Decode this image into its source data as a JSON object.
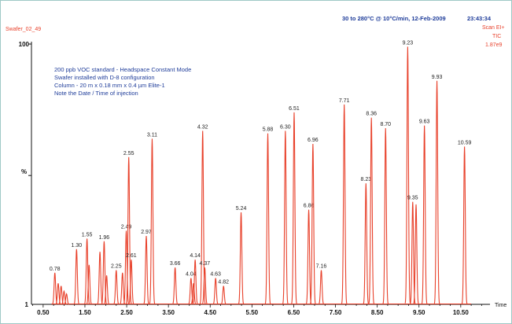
{
  "header": {
    "sample_id": "Swafer_02_49",
    "method": "30 to 280°C @ 10°C/min,  12-Feb-2009",
    "time": "23:43:34",
    "scan": "Scan EI+",
    "trace": "TIC",
    "intensity": "1.87e9"
  },
  "notes": [
    "200 ppb VOC standard - Headspace Constant Mode",
    "Swafer installed with D-8 configuration",
    "Column - 20 m x 0.18 mm x 0.4 µm Elite-1",
    "Note the Date / Time of injection"
  ],
  "colors": {
    "trace": "#e8412b",
    "text_blue": "#1f3d9a",
    "frame": "#9fc8c6",
    "axis": "#111111"
  },
  "chart_data": {
    "type": "line",
    "title": "",
    "xlabel": "Time",
    "ylabel": "%",
    "xlim": [
      0.22,
      11.2
    ],
    "ylim": [
      1,
      100
    ],
    "x_ticks": [
      "0.50",
      "1.50",
      "2.50",
      "3.50",
      "4.50",
      "5.50",
      "6.50",
      "7.50",
      "8.50",
      "9.50",
      "10.50"
    ],
    "y_ticks": [
      "1",
      "100"
    ],
    "labeled_peaks": [
      {
        "x": 0.78,
        "y": 13,
        "label": "0.78"
      },
      {
        "x": 1.3,
        "y": 22,
        "label": "1.30"
      },
      {
        "x": 1.55,
        "y": 26,
        "label": "1.55"
      },
      {
        "x": 1.96,
        "y": 25,
        "label": "1.96"
      },
      {
        "x": 2.25,
        "y": 14,
        "label": "2.25"
      },
      {
        "x": 2.49,
        "y": 29,
        "label": "2.49"
      },
      {
        "x": 2.55,
        "y": 57,
        "label": "2.55"
      },
      {
        "x": 2.61,
        "y": 18,
        "label": "2.61"
      },
      {
        "x": 2.97,
        "y": 27,
        "label": "2.97"
      },
      {
        "x": 3.11,
        "y": 64,
        "label": "3.11"
      },
      {
        "x": 3.66,
        "y": 15,
        "label": "3.66"
      },
      {
        "x": 4.04,
        "y": 11,
        "label": "4.04"
      },
      {
        "x": 4.14,
        "y": 18,
        "label": "4.14"
      },
      {
        "x": 4.32,
        "y": 67,
        "label": "4.32"
      },
      {
        "x": 4.37,
        "y": 15,
        "label": "4.37"
      },
      {
        "x": 4.63,
        "y": 11,
        "label": "4.63"
      },
      {
        "x": 4.82,
        "y": 8,
        "label": "4.82"
      },
      {
        "x": 5.24,
        "y": 36,
        "label": "5.24"
      },
      {
        "x": 5.88,
        "y": 66,
        "label": "5.88"
      },
      {
        "x": 6.3,
        "y": 67,
        "label": "6.30"
      },
      {
        "x": 6.51,
        "y": 74,
        "label": "6.51"
      },
      {
        "x": 6.86,
        "y": 37,
        "label": "6.86"
      },
      {
        "x": 6.96,
        "y": 62,
        "label": "6.96"
      },
      {
        "x": 7.16,
        "y": 14,
        "label": "7.16"
      },
      {
        "x": 7.71,
        "y": 77,
        "label": "7.71"
      },
      {
        "x": 8.23,
        "y": 47,
        "label": "8.23"
      },
      {
        "x": 8.36,
        "y": 72,
        "label": "8.36"
      },
      {
        "x": 8.7,
        "y": 68,
        "label": "8.70"
      },
      {
        "x": 9.23,
        "y": 99,
        "label": "9.23"
      },
      {
        "x": 9.35,
        "y": 40,
        "label": "9.35"
      },
      {
        "x": 9.63,
        "y": 69,
        "label": "9.63"
      },
      {
        "x": 9.93,
        "y": 86,
        "label": "9.93"
      },
      {
        "x": 10.59,
        "y": 61,
        "label": "10.59"
      }
    ],
    "unlabeled_peaks": [
      {
        "x": 0.86,
        "y": 9
      },
      {
        "x": 0.93,
        "y": 8
      },
      {
        "x": 1.0,
        "y": 6
      },
      {
        "x": 1.06,
        "y": 5
      },
      {
        "x": 1.6,
        "y": 16
      },
      {
        "x": 1.86,
        "y": 21
      },
      {
        "x": 2.02,
        "y": 12
      },
      {
        "x": 2.4,
        "y": 13
      },
      {
        "x": 4.1,
        "y": 9
      },
      {
        "x": 9.43,
        "y": 39
      }
    ]
  }
}
